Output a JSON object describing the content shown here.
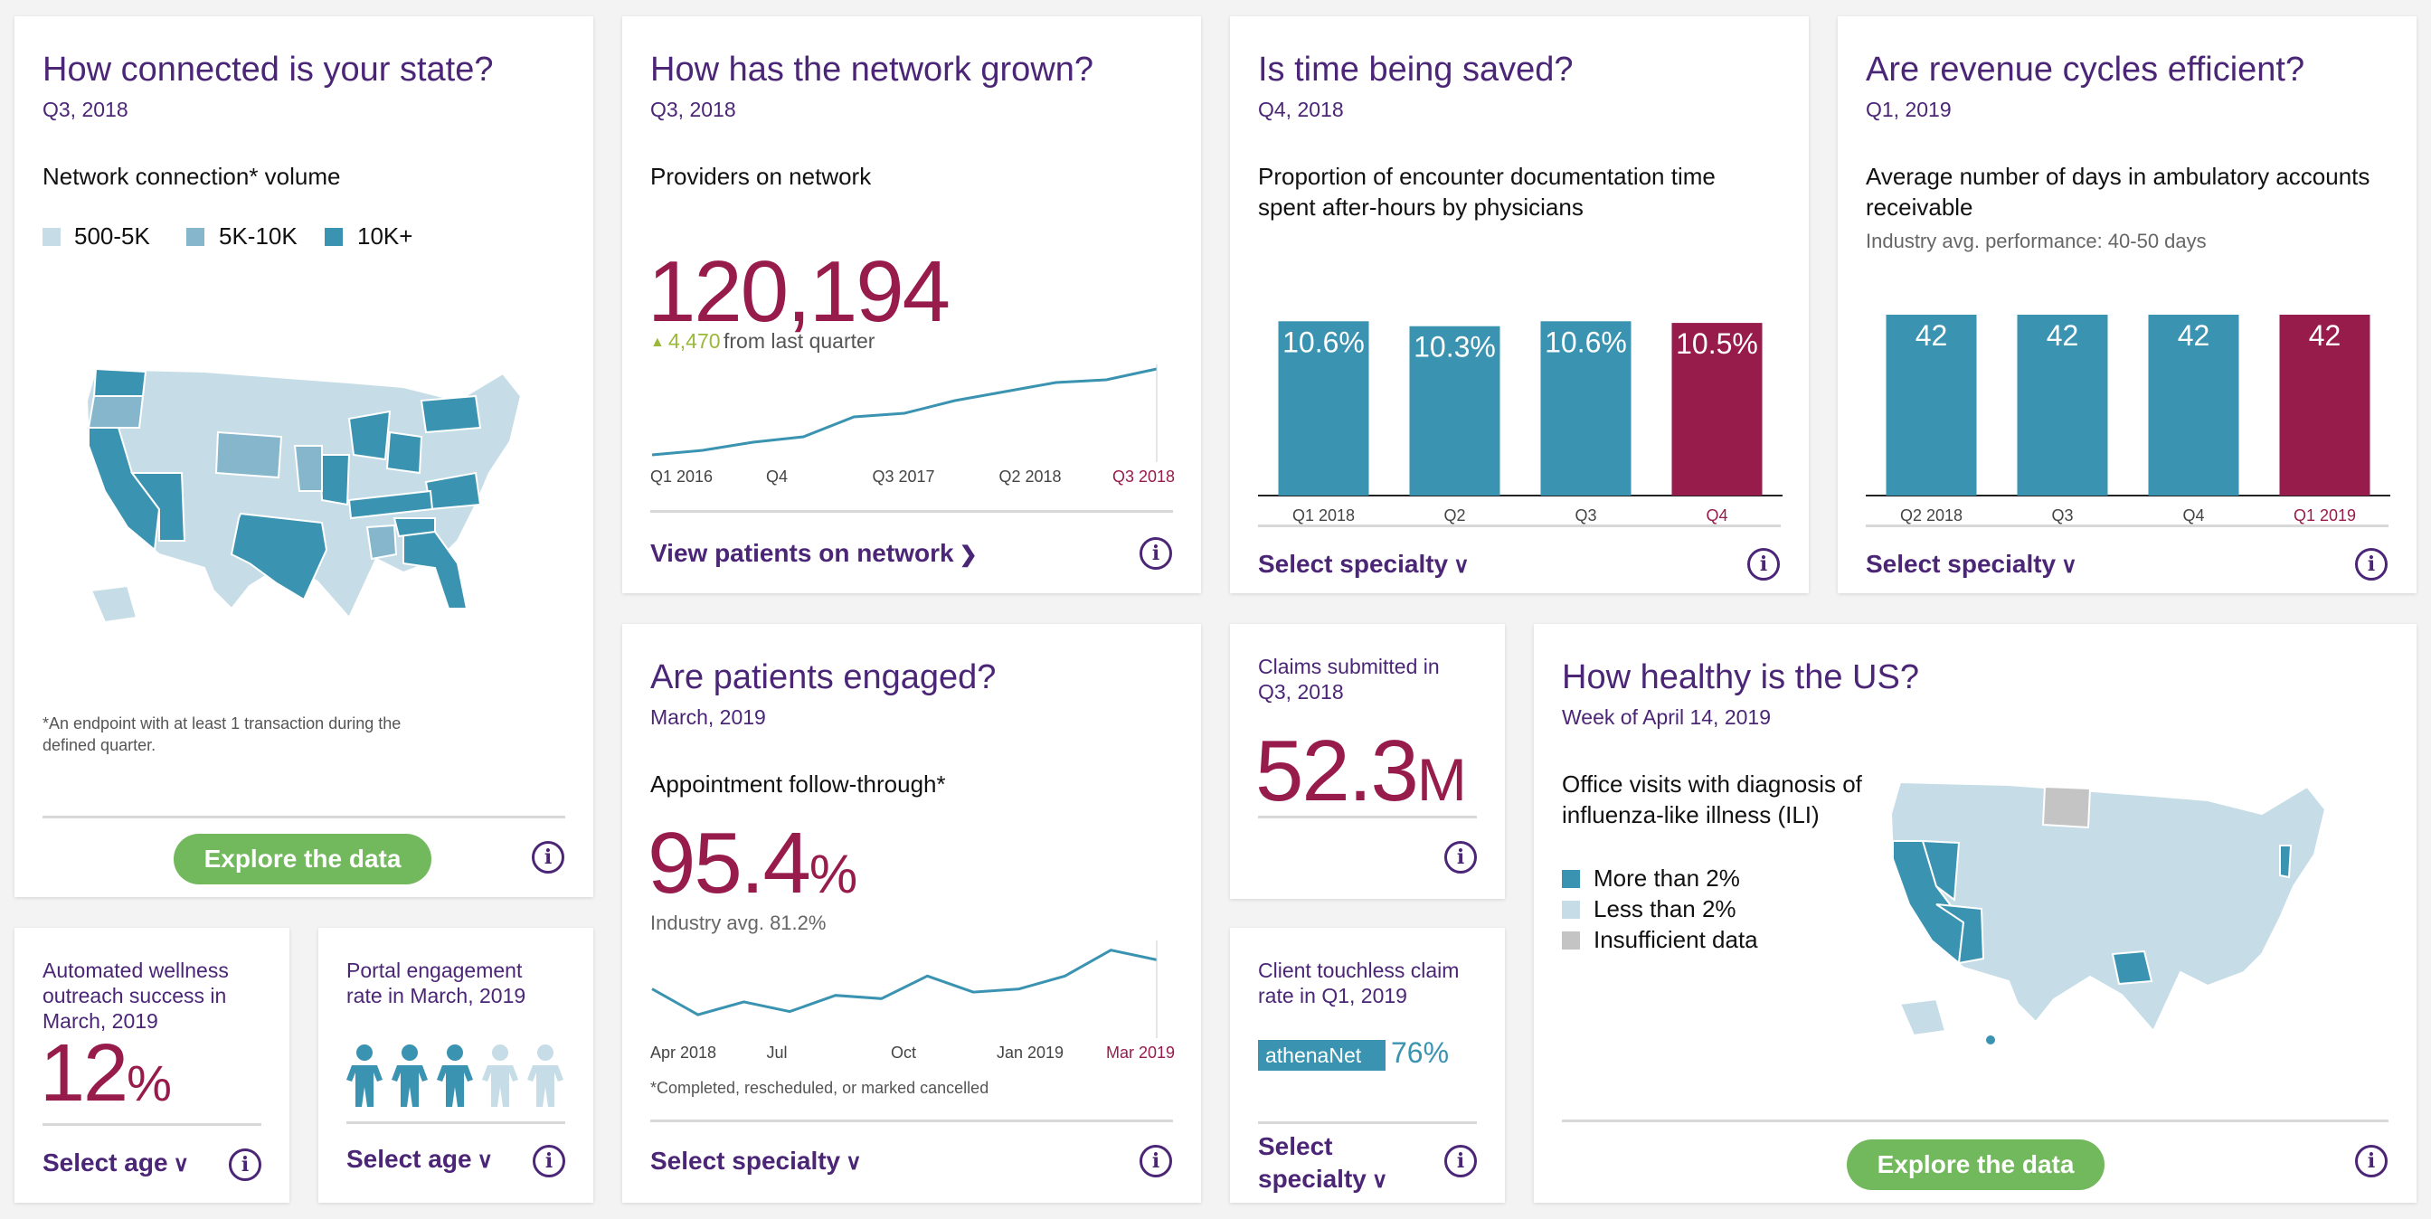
{
  "colors": {
    "purple": "#4b2576",
    "maroon": "#971b4b",
    "teal": "#3a93b0",
    "light": "#c6dde7",
    "mid": "#86b6cc",
    "green": "#72b85c",
    "grey": "#c4c4c4"
  },
  "card1": {
    "title": "How connected is your state?",
    "date": "Q3, 2018",
    "label": "Network connection* volume",
    "legend": [
      "500-5K",
      "5K-10K",
      "10K+"
    ],
    "footnote": "*An endpoint with at least 1 transaction during the defined quarter.",
    "button": "Explore the data"
  },
  "card2": {
    "title": "How has the network grown?",
    "date": "Q3, 2018",
    "label": "Providers on network",
    "value": "120,194",
    "change": "4,470",
    "change_text": "from last quarter",
    "link": "View patients on network"
  },
  "card3": {
    "title": "Is time being saved?",
    "date": "Q4, 2018",
    "label_line1": "Proportion of encounter documentation time",
    "label_line2": "spent after-hours by physicians",
    "link": "Select specialty"
  },
  "card4": {
    "title": "Are revenue cycles efficient?",
    "date": "Q1, 2019",
    "label_line1": "Average number of days in ambulatory accounts",
    "label_line2": "receivable",
    "note": "Industry avg. performance: 40-50 days",
    "link": "Select specialty"
  },
  "card5": {
    "title": "Are patients engaged?",
    "date": "March, 2019",
    "label": "Appointment follow-through*",
    "value": "95.4",
    "unit": "%",
    "note": "Industry avg. 81.2%",
    "footnote": "*Completed, rescheduled, or marked cancelled",
    "link": "Select specialty"
  },
  "card6": {
    "label_line1": "Claims submitted in",
    "label_line2": "Q3, 2018",
    "value": "52.3",
    "unit": "M"
  },
  "card7": {
    "label_line1": "Client touchless claim",
    "label_line2": "rate in Q1, 2019",
    "bar_label": "athenaNet",
    "value": "76%",
    "bar_fraction": 0.76,
    "link_line1": "Select",
    "link_line2": "specialty"
  },
  "card8": {
    "title": "How healthy is the US?",
    "date": "Week of April 14, 2019",
    "label_line1": "Office visits with diagnosis of",
    "label_line2": "influenza-like illness (ILI)",
    "legend": [
      "More than 2%",
      "Less than 2%",
      "Insufficient data"
    ],
    "button": "Explore the data"
  },
  "card9": {
    "label_line1": "Automated wellness",
    "label_line2": "outreach success in",
    "label_line3": "March, 2019",
    "value": "12",
    "unit": "%",
    "link": "Select age"
  },
  "card10": {
    "label_line1": "Portal engagement",
    "label_line2": "rate in March, 2019",
    "people_filled": 3,
    "people_total": 5,
    "link": "Select age"
  },
  "chart_data": [
    {
      "type": "line",
      "id": "providers",
      "x_ticks": [
        "Q1 2016",
        "Q4",
        "Q3 2017",
        "Q2 2018",
        "Q3 2018"
      ],
      "values": [
        0.0,
        0.05,
        0.14,
        0.2,
        0.42,
        0.46,
        0.6,
        0.7,
        0.8,
        0.83,
        0.95
      ],
      "note": "relative trend, axis unlabeled"
    },
    {
      "type": "bar",
      "id": "after_hours",
      "categories": [
        "Q1 2018",
        "Q2",
        "Q3",
        "Q4"
      ],
      "values": [
        10.6,
        10.3,
        10.6,
        10.5
      ],
      "labels": [
        "10.6%",
        "10.3%",
        "10.6%",
        "10.5%"
      ],
      "highlight": "Q4"
    },
    {
      "type": "bar",
      "id": "ar_days",
      "categories": [
        "Q2 2018",
        "Q3",
        "Q4",
        "Q1 2019"
      ],
      "values": [
        42,
        42,
        42,
        42
      ],
      "labels": [
        "42",
        "42",
        "42",
        "42"
      ],
      "highlight": "Q1 2019"
    },
    {
      "type": "line",
      "id": "follow_through",
      "x_ticks": [
        "Apr 2018",
        "Jul",
        "Oct",
        "Jan 2019",
        "Mar 2019"
      ],
      "values": [
        95.1,
        94.3,
        94.7,
        94.4,
        94.9,
        94.8,
        95.5,
        95.0,
        95.1,
        95.5,
        96.3,
        96.0
      ],
      "note": "approximate, axis unlabeled"
    }
  ]
}
